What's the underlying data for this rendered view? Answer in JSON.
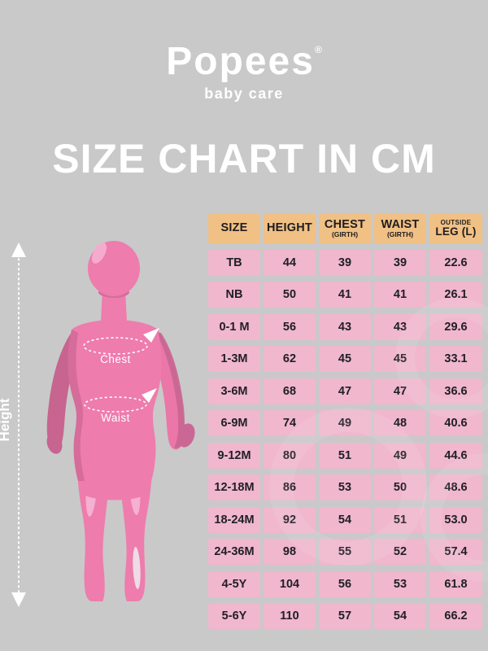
{
  "brand": {
    "name": "Popees",
    "registered_mark": "®",
    "tagline": "baby care"
  },
  "page_title": "SIZE CHART IN CM",
  "figure": {
    "height_label": "Height",
    "chest_label": "Chest",
    "waist_label": "Waist"
  },
  "chart_data": {
    "type": "table",
    "title": "SIZE CHART IN CM",
    "units": "cm",
    "columns": [
      {
        "id": "size",
        "top": "",
        "main": "SIZE",
        "sub": ""
      },
      {
        "id": "height",
        "top": "",
        "main": "HEIGHT",
        "sub": ""
      },
      {
        "id": "chest",
        "top": "",
        "main": "CHEST",
        "sub": "(GIRTH)"
      },
      {
        "id": "waist",
        "top": "",
        "main": "WAIST",
        "sub": "(GIRTH)"
      },
      {
        "id": "outside-leg",
        "top": "OUTSIDE",
        "main": "LEG (L)",
        "sub": ""
      }
    ],
    "rows": [
      [
        "TB",
        "44",
        "39",
        "39",
        "22.6"
      ],
      [
        "NB",
        "50",
        "41",
        "41",
        "26.1"
      ],
      [
        "0-1 M",
        "56",
        "43",
        "43",
        "29.6"
      ],
      [
        "1-3M",
        "62",
        "45",
        "45",
        "33.1"
      ],
      [
        "3-6M",
        "68",
        "47",
        "47",
        "36.6"
      ],
      [
        "6-9M",
        "74",
        "49",
        "48",
        "40.6"
      ],
      [
        "9-12M",
        "80",
        "51",
        "49",
        "44.6"
      ],
      [
        "12-18M",
        "86",
        "53",
        "50",
        "48.6"
      ],
      [
        "18-24M",
        "92",
        "54",
        "51",
        "53.0"
      ],
      [
        "24-36M",
        "98",
        "55",
        "52",
        "57.4"
      ],
      [
        "4-5Y",
        "104",
        "56",
        "53",
        "61.8"
      ],
      [
        "5-6Y",
        "110",
        "57",
        "54",
        "66.2"
      ]
    ]
  },
  "colors": {
    "background": "#c9c9c9",
    "header_bg": "#f1c084",
    "cell_bg": "#f0b7cd",
    "text_dark": "#1d1d20",
    "white_text": "#ffffff",
    "figure_body": "#ee7cad",
    "figure_shadow": "#c7648f",
    "figure_highlight": "#f6b6d5"
  }
}
